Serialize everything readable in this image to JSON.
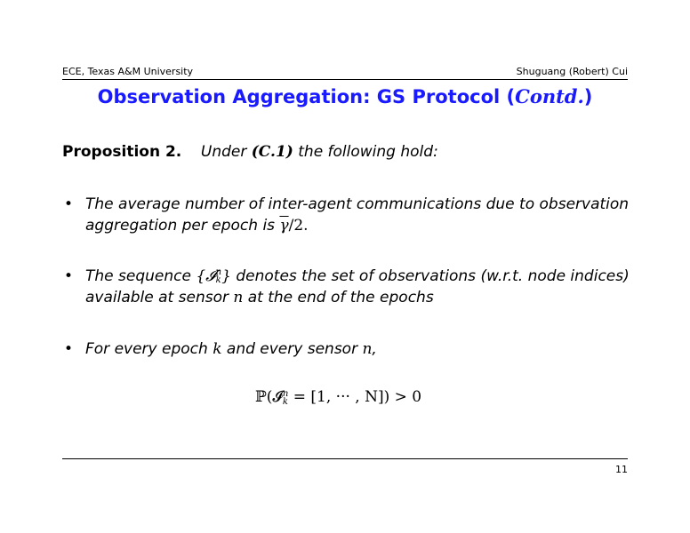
{
  "header": {
    "left": "ECE, Texas A&M University",
    "right": "Shuguang (Robert) Cui"
  },
  "title": {
    "main": "Observation Aggregation: GS Protocol (",
    "italic": "Contd.",
    "close": ")"
  },
  "proposition": {
    "label": "Proposition 2.",
    "pre": "Under ",
    "cond": "(C.1)",
    "post": " the following hold:"
  },
  "bullets": [
    {
      "line1": "The average number of inter-agent communications due to observation",
      "line2_pre": "aggregation per epoch is ",
      "line2_math": "γ",
      "line2_math2": "/2."
    },
    {
      "line1_pre": "The sequence ",
      "line1_math": "{𝓘",
      "line1_sup": "n",
      "line1_sub": "k",
      "line1_close": "}",
      "line1_post": " denotes the set of observations (w.r.t. node indices)",
      "line2_pre": "available at sensor ",
      "line2_math": "n",
      "line2_post": " at the end of the epochs"
    },
    {
      "pre": "For every epoch ",
      "m1": "k",
      "mid": " and every sensor ",
      "m2": "n",
      "post": ","
    }
  ],
  "formula": {
    "p": "ℙ(𝓘",
    "sup": "n",
    "sub": "k",
    "rest": " = [1, ··· , N]) > 0"
  },
  "footer": {
    "page": "11"
  }
}
